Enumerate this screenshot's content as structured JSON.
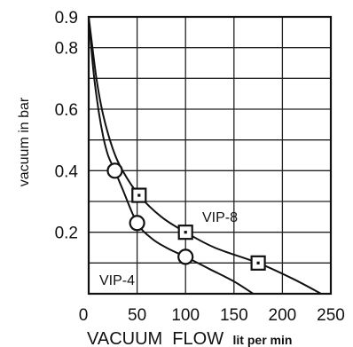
{
  "chart_data": {
    "type": "line",
    "title": "",
    "ylabel": "vacuum in bar",
    "xlabel_main": "VACUUM  FLOW",
    "xlabel_unit": "lit per min",
    "xlim": [
      0,
      250
    ],
    "ylim": [
      0,
      0.9
    ],
    "x_ticks": [
      {
        "value": 0,
        "label": "0"
      },
      {
        "value": 50,
        "label": "50"
      },
      {
        "value": 100,
        "label": "100"
      },
      {
        "value": 150,
        "label": "150"
      },
      {
        "value": 200,
        "label": "200"
      },
      {
        "value": 250,
        "label": "250"
      }
    ],
    "y_ticks": [
      {
        "value": 0.2,
        "label": "0.2"
      },
      {
        "value": 0.4,
        "label": "0.4"
      },
      {
        "value": 0.6,
        "label": "0.6"
      },
      {
        "value": 0.8,
        "label": "0.8"
      },
      {
        "value": 0.9,
        "label": "0.9"
      }
    ],
    "grid": true,
    "series": [
      {
        "name": "VIP-4",
        "marker": "circle",
        "curve": [
          [
            0,
            0.9
          ],
          [
            5,
            0.72
          ],
          [
            10,
            0.6
          ],
          [
            15,
            0.51
          ],
          [
            20,
            0.45
          ],
          [
            27,
            0.4
          ],
          [
            35,
            0.34
          ],
          [
            50,
            0.23
          ],
          [
            65,
            0.18
          ],
          [
            80,
            0.15
          ],
          [
            100,
            0.12
          ],
          [
            125,
            0.08
          ],
          [
            150,
            0.04
          ],
          [
            170,
            0.0
          ]
        ],
        "markers": [
          [
            27,
            0.4
          ],
          [
            50,
            0.23
          ],
          [
            100,
            0.12
          ]
        ]
      },
      {
        "name": "VIP-8",
        "marker": "square",
        "curve": [
          [
            0,
            0.9
          ],
          [
            8,
            0.7
          ],
          [
            15,
            0.58
          ],
          [
            25,
            0.47
          ],
          [
            35,
            0.4
          ],
          [
            52,
            0.32
          ],
          [
            75,
            0.25
          ],
          [
            100,
            0.2
          ],
          [
            130,
            0.15
          ],
          [
            175,
            0.1
          ],
          [
            210,
            0.05
          ],
          [
            240,
            0.0
          ]
        ],
        "markers": [
          [
            52,
            0.32
          ],
          [
            100,
            0.2
          ],
          [
            175,
            0.1
          ]
        ]
      }
    ]
  }
}
